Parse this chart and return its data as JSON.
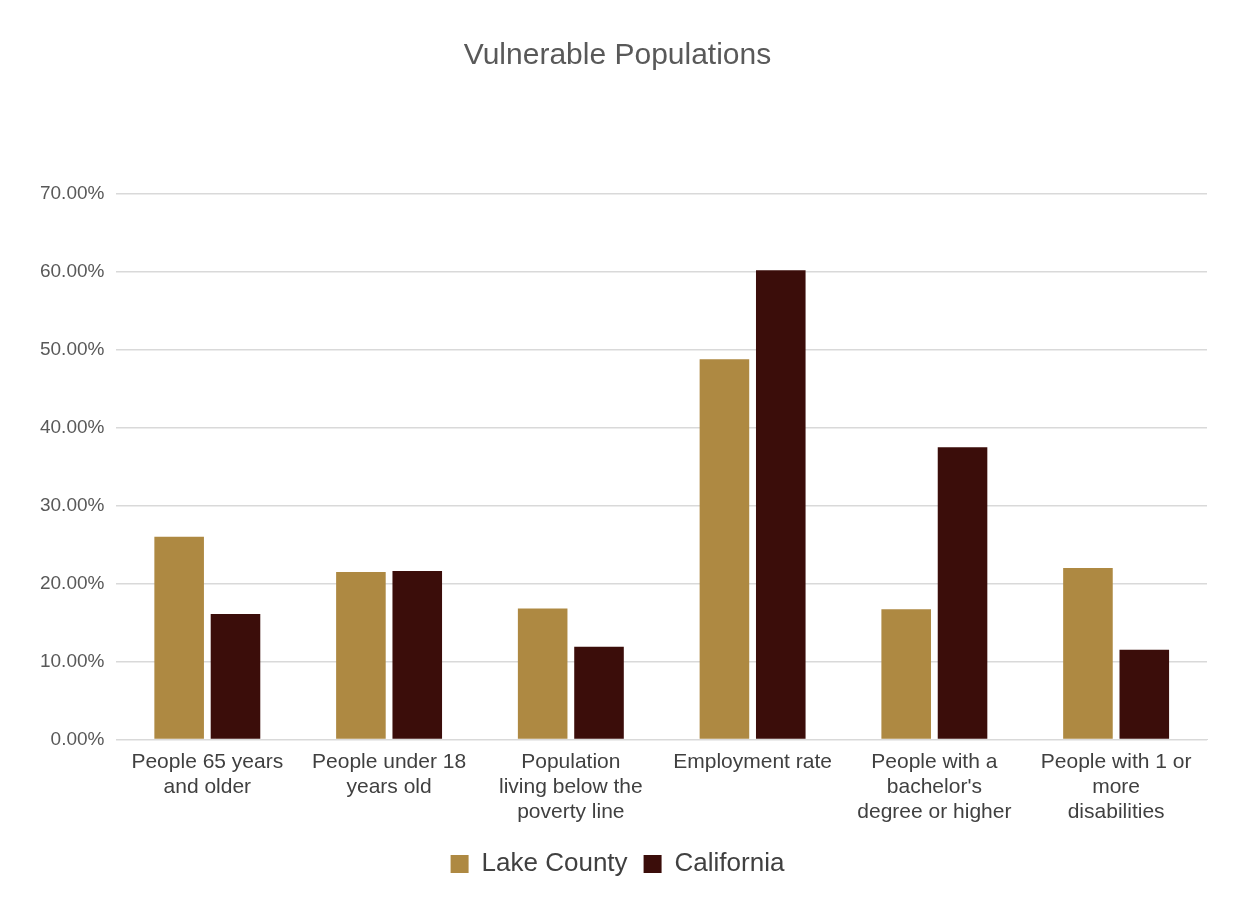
{
  "chart_data": {
    "type": "bar",
    "title": "Vulnerable Populations",
    "categories": [
      "People 65 years and older",
      "People under 18 years old",
      "Population living below the poverty line",
      "Employment rate",
      "People with a bachelor's degree or higher",
      "People with 1 or more disabilities"
    ],
    "series": [
      {
        "name": "Lake County",
        "color": "#ae8942",
        "values": [
          26.0,
          21.5,
          16.8,
          48.8,
          16.7,
          22.0
        ]
      },
      {
        "name": "California",
        "color": "#3b0d0a",
        "values": [
          16.1,
          21.6,
          11.9,
          60.2,
          37.5,
          11.5
        ]
      }
    ],
    "ylim": [
      0,
      70
    ],
    "yticks": [
      {
        "value": 0,
        "label": "0.00%"
      },
      {
        "value": 10,
        "label": "10.00%"
      },
      {
        "value": 20,
        "label": "20.00%"
      },
      {
        "value": 30,
        "label": "30.00%"
      },
      {
        "value": 40,
        "label": "40.00%"
      },
      {
        "value": 50,
        "label": "50.00%"
      },
      {
        "value": 60,
        "label": "60.00%"
      },
      {
        "value": 70,
        "label": "70.00%"
      }
    ],
    "grid": "y",
    "legend": "bottom"
  }
}
